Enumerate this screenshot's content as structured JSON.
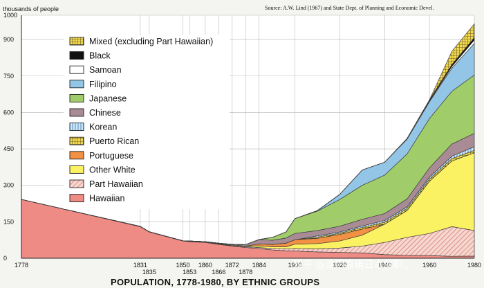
{
  "watermark": "知乎 @沈阳嘉诺日本就职...",
  "chart_data": {
    "type": "area",
    "stacked": true,
    "title": "POPULATION, 1778-1980, BY ETHNIC GROUPS",
    "ylabel": "thousands of people",
    "source": "Source: A.W. Lind (1967) and State Dept. of Planning and Economic Devel.",
    "ylim": [
      0,
      1000
    ],
    "xlim": [
      1778,
      1980
    ],
    "yticks": [
      0,
      150,
      300,
      450,
      600,
      750,
      900,
      1000
    ],
    "xticks_top": [
      "1778",
      "1831",
      "1850",
      "1860",
      "1872",
      "1884",
      "1900",
      "1920",
      "1940",
      "1960",
      "1980"
    ],
    "xticks_bottom": [
      "1835",
      "1853",
      "1866",
      "1878"
    ],
    "grid": true,
    "legend_position": "top-left",
    "x": [
      1778,
      1831,
      1835,
      1850,
      1853,
      1860,
      1866,
      1872,
      1878,
      1884,
      1890,
      1896,
      1900,
      1910,
      1920,
      1930,
      1940,
      1950,
      1960,
      1970,
      1980
    ],
    "series": [
      {
        "name": "Hawaiian",
        "color": "#ee8b84",
        "pattern": "solid",
        "values": [
          242,
          130,
          108,
          71,
          68,
          65,
          57,
          50,
          44,
          40,
          34,
          31,
          30,
          26,
          24,
          22,
          15,
          12,
          11,
          8,
          9
        ]
      },
      {
        "name": "Part Hawaiian",
        "color": "#f2bcb1",
        "pattern": "diag",
        "values": [
          0,
          0,
          0,
          0,
          1,
          1,
          2,
          2,
          3,
          4,
          6,
          8,
          10,
          12,
          18,
          28,
          50,
          74,
          91,
          122,
          105
        ]
      },
      {
        "name": "Other White",
        "color": "#fbf263",
        "pattern": "solid",
        "values": [
          0,
          1,
          1,
          1,
          2,
          2,
          2,
          3,
          3,
          7,
          7,
          8,
          18,
          22,
          29,
          45,
          75,
          110,
          215,
          270,
          320
        ]
      },
      {
        "name": "Portuguese",
        "color": "#f29043",
        "pattern": "solid",
        "values": [
          0,
          0,
          0,
          0,
          0,
          0,
          0,
          0,
          0,
          8,
          10,
          15,
          18,
          22,
          27,
          25,
          0,
          0,
          0,
          0,
          0
        ]
      },
      {
        "name": "Puerto Rican",
        "color": "#ded24a",
        "pattern": "grid",
        "values": [
          0,
          0,
          0,
          0,
          0,
          0,
          0,
          0,
          0,
          0,
          0,
          0,
          0,
          5,
          5,
          7,
          8,
          9,
          9,
          10,
          10
        ]
      },
      {
        "name": "Korean",
        "color": "#a9d2ea",
        "pattern": "vlines",
        "values": [
          0,
          0,
          0,
          0,
          0,
          0,
          0,
          0,
          0,
          0,
          0,
          0,
          0,
          5,
          5,
          6,
          7,
          7,
          8,
          10,
          15
        ]
      },
      {
        "name": "Chinese",
        "color": "#a88b94",
        "pattern": "solid",
        "values": [
          0,
          0,
          0,
          0,
          0,
          0,
          1,
          2,
          6,
          18,
          17,
          21,
          26,
          22,
          24,
          27,
          29,
          32,
          38,
          50,
          55
        ]
      },
      {
        "name": "Japanese",
        "color": "#a0cd6a",
        "pattern": "solid",
        "values": [
          0,
          0,
          0,
          0,
          0,
          0,
          0,
          0,
          0,
          0,
          12,
          25,
          61,
          80,
          110,
          140,
          158,
          185,
          203,
          217,
          240
        ]
      },
      {
        "name": "Filipino",
        "color": "#93c6e6",
        "pattern": "solid",
        "values": [
          0,
          0,
          0,
          0,
          0,
          0,
          0,
          0,
          0,
          0,
          0,
          0,
          0,
          2,
          21,
          63,
          53,
          61,
          69,
          95,
          130
        ]
      },
      {
        "name": "Samoan",
        "color": "#ffffff",
        "pattern": "solid",
        "values": [
          0,
          0,
          0,
          0,
          0,
          0,
          0,
          0,
          0,
          0,
          0,
          0,
          0,
          0,
          0,
          0,
          0,
          0,
          3,
          7,
          14
        ]
      },
      {
        "name": "Black",
        "color": "#111111",
        "pattern": "solid",
        "values": [
          0,
          0,
          0,
          0,
          0,
          0,
          0,
          0,
          0,
          0,
          0,
          0,
          0,
          0,
          0,
          0,
          0,
          3,
          5,
          8,
          10
        ]
      },
      {
        "name": "Mixed (excluding Part Hawaiian)",
        "color": "#e8d06b",
        "pattern": "grid",
        "values": [
          0,
          0,
          0,
          0,
          0,
          0,
          0,
          0,
          0,
          0,
          0,
          0,
          0,
          0,
          0,
          0,
          0,
          0,
          0,
          55,
          57
        ]
      }
    ]
  }
}
